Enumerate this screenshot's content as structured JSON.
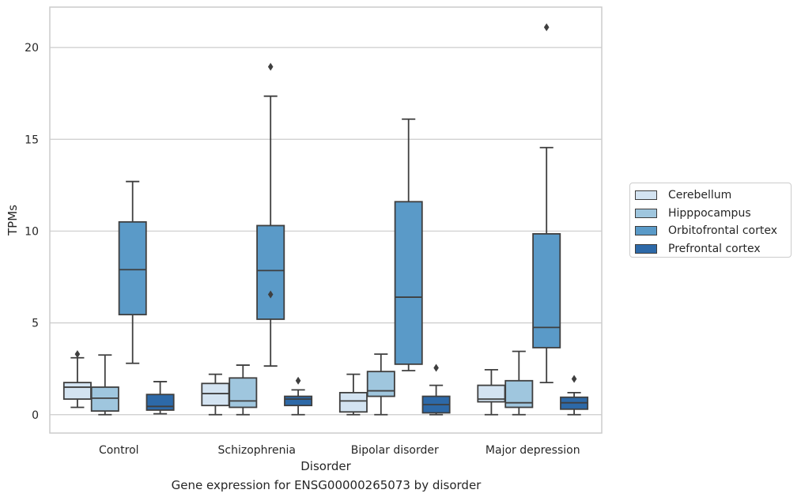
{
  "caption": "Gene expression for ENSG00000265073 by disorder",
  "legend_items": [
    {
      "label": "Cerebellum",
      "color": "#d3e3f1"
    },
    {
      "label": "Hipppocampus",
      "color": "#9fc6de"
    },
    {
      "label": "Orbitofrontal cortex",
      "color": "#5a9ac8"
    },
    {
      "label": "Prefrontal cortex",
      "color": "#2d69a8"
    }
  ],
  "chart_data": {
    "type": "box",
    "title": "",
    "xlabel": "Disorder",
    "ylabel": "TPMs",
    "ylim": [
      -1,
      22.2
    ],
    "yticks": [
      0,
      5,
      10,
      15,
      20
    ],
    "grid": "horizontal",
    "legend_position": "right",
    "categories": [
      "Control",
      "Schizophrenia",
      "Bipolar disorder",
      "Major depression"
    ],
    "series": [
      {
        "name": "Cerebellum",
        "color": "#d3e3f1",
        "boxes": [
          {
            "whisker_low": 0.4,
            "q1": 0.85,
            "median": 1.5,
            "q3": 1.75,
            "whisker_high": 3.1,
            "outliers": [
              3.3
            ]
          },
          {
            "whisker_low": 0.0,
            "q1": 0.5,
            "median": 1.15,
            "q3": 1.7,
            "whisker_high": 2.2,
            "outliers": []
          },
          {
            "whisker_low": 0.0,
            "q1": 0.15,
            "median": 0.75,
            "q3": 1.2,
            "whisker_high": 2.2,
            "outliers": []
          },
          {
            "whisker_low": 0.0,
            "q1": 0.7,
            "median": 0.85,
            "q3": 1.6,
            "whisker_high": 2.45,
            "outliers": []
          }
        ]
      },
      {
        "name": "Hipppocampus",
        "color": "#9fc6de",
        "boxes": [
          {
            "whisker_low": 0.0,
            "q1": 0.2,
            "median": 0.9,
            "q3": 1.5,
            "whisker_high": 3.25,
            "outliers": []
          },
          {
            "whisker_low": 0.0,
            "q1": 0.4,
            "median": 0.75,
            "q3": 2.0,
            "whisker_high": 2.7,
            "outliers": []
          },
          {
            "whisker_low": 0.0,
            "q1": 1.0,
            "median": 1.3,
            "q3": 2.35,
            "whisker_high": 3.3,
            "outliers": []
          },
          {
            "whisker_low": 0.0,
            "q1": 0.4,
            "median": 0.65,
            "q3": 1.85,
            "whisker_high": 3.45,
            "outliers": []
          }
        ]
      },
      {
        "name": "Orbitofrontal cortex",
        "color": "#5a9ac8",
        "boxes": [
          {
            "whisker_low": 2.8,
            "q1": 5.45,
            "median": 7.9,
            "q3": 10.5,
            "whisker_high": 12.7,
            "outliers": []
          },
          {
            "whisker_low": 2.65,
            "q1": 5.2,
            "median": 7.85,
            "q3": 10.3,
            "whisker_high": 17.35,
            "outliers": [
              6.55,
              18.95
            ]
          },
          {
            "whisker_low": 2.4,
            "q1": 2.75,
            "median": 6.4,
            "q3": 11.6,
            "whisker_high": 16.1,
            "outliers": []
          },
          {
            "whisker_low": 1.75,
            "q1": 3.65,
            "median": 4.75,
            "q3": 9.85,
            "whisker_high": 14.55,
            "outliers": [
              21.1
            ]
          }
        ]
      },
      {
        "name": "Prefrontal cortex",
        "color": "#2d69a8",
        "boxes": [
          {
            "whisker_low": 0.05,
            "q1": 0.25,
            "median": 0.45,
            "q3": 1.1,
            "whisker_high": 1.8,
            "outliers": []
          },
          {
            "whisker_low": 0.0,
            "q1": 0.5,
            "median": 0.85,
            "q3": 1.0,
            "whisker_high": 1.35,
            "outliers": [
              1.85
            ]
          },
          {
            "whisker_low": 0.0,
            "q1": 0.1,
            "median": 0.55,
            "q3": 1.0,
            "whisker_high": 1.6,
            "outliers": [
              2.55
            ]
          },
          {
            "whisker_low": 0.0,
            "q1": 0.3,
            "median": 0.65,
            "q3": 0.95,
            "whisker_high": 1.2,
            "outliers": [
              1.95
            ]
          }
        ]
      }
    ]
  }
}
